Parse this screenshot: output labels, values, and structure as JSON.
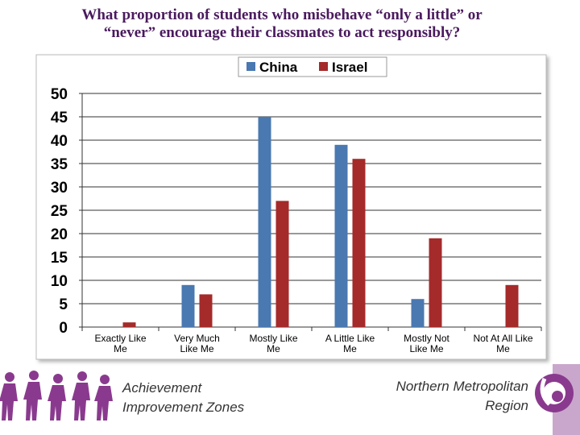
{
  "slide": {
    "title_line1": "What proportion of students who misbehave “only a little” or",
    "title_line2": "“never” encourage their classmates to act responsibly?"
  },
  "chart_data": {
    "type": "bar",
    "title": "What proportion of students who misbehave “only a little” or “never” encourage their classmates to act responsibly?",
    "categories": [
      [
        "Exactly Like",
        "Me"
      ],
      [
        "Very Much",
        "Like Me"
      ],
      [
        "Mostly Like",
        "Me"
      ],
      [
        "A Little Like",
        "Me"
      ],
      [
        "Mostly Not",
        "Like Me"
      ],
      [
        "Not At All Like",
        "Me"
      ]
    ],
    "series": [
      {
        "name": "China",
        "values": [
          0,
          9,
          45,
          39,
          6,
          0
        ],
        "color": "#4a78b0"
      },
      {
        "name": "Israel",
        "values": [
          1,
          7,
          27,
          36,
          19,
          9
        ],
        "color": "#a52a2a"
      }
    ],
    "ylim": [
      0,
      50
    ],
    "yticks": [
      0,
      5,
      10,
      15,
      20,
      25,
      30,
      35,
      40,
      45,
      50
    ],
    "grid": true,
    "legend_position": "top"
  },
  "footer": {
    "left_line1": "Achievement",
    "left_line2": "Improvement Zones",
    "right_line1": "Northern Metropolitan",
    "right_line2": "Region"
  },
  "colors": {
    "title": "#4a1a5e",
    "brand_purple": "#8a3a8e"
  },
  "icons": {
    "left": "children-silhouettes-icon",
    "right": "region-logo-icon"
  }
}
